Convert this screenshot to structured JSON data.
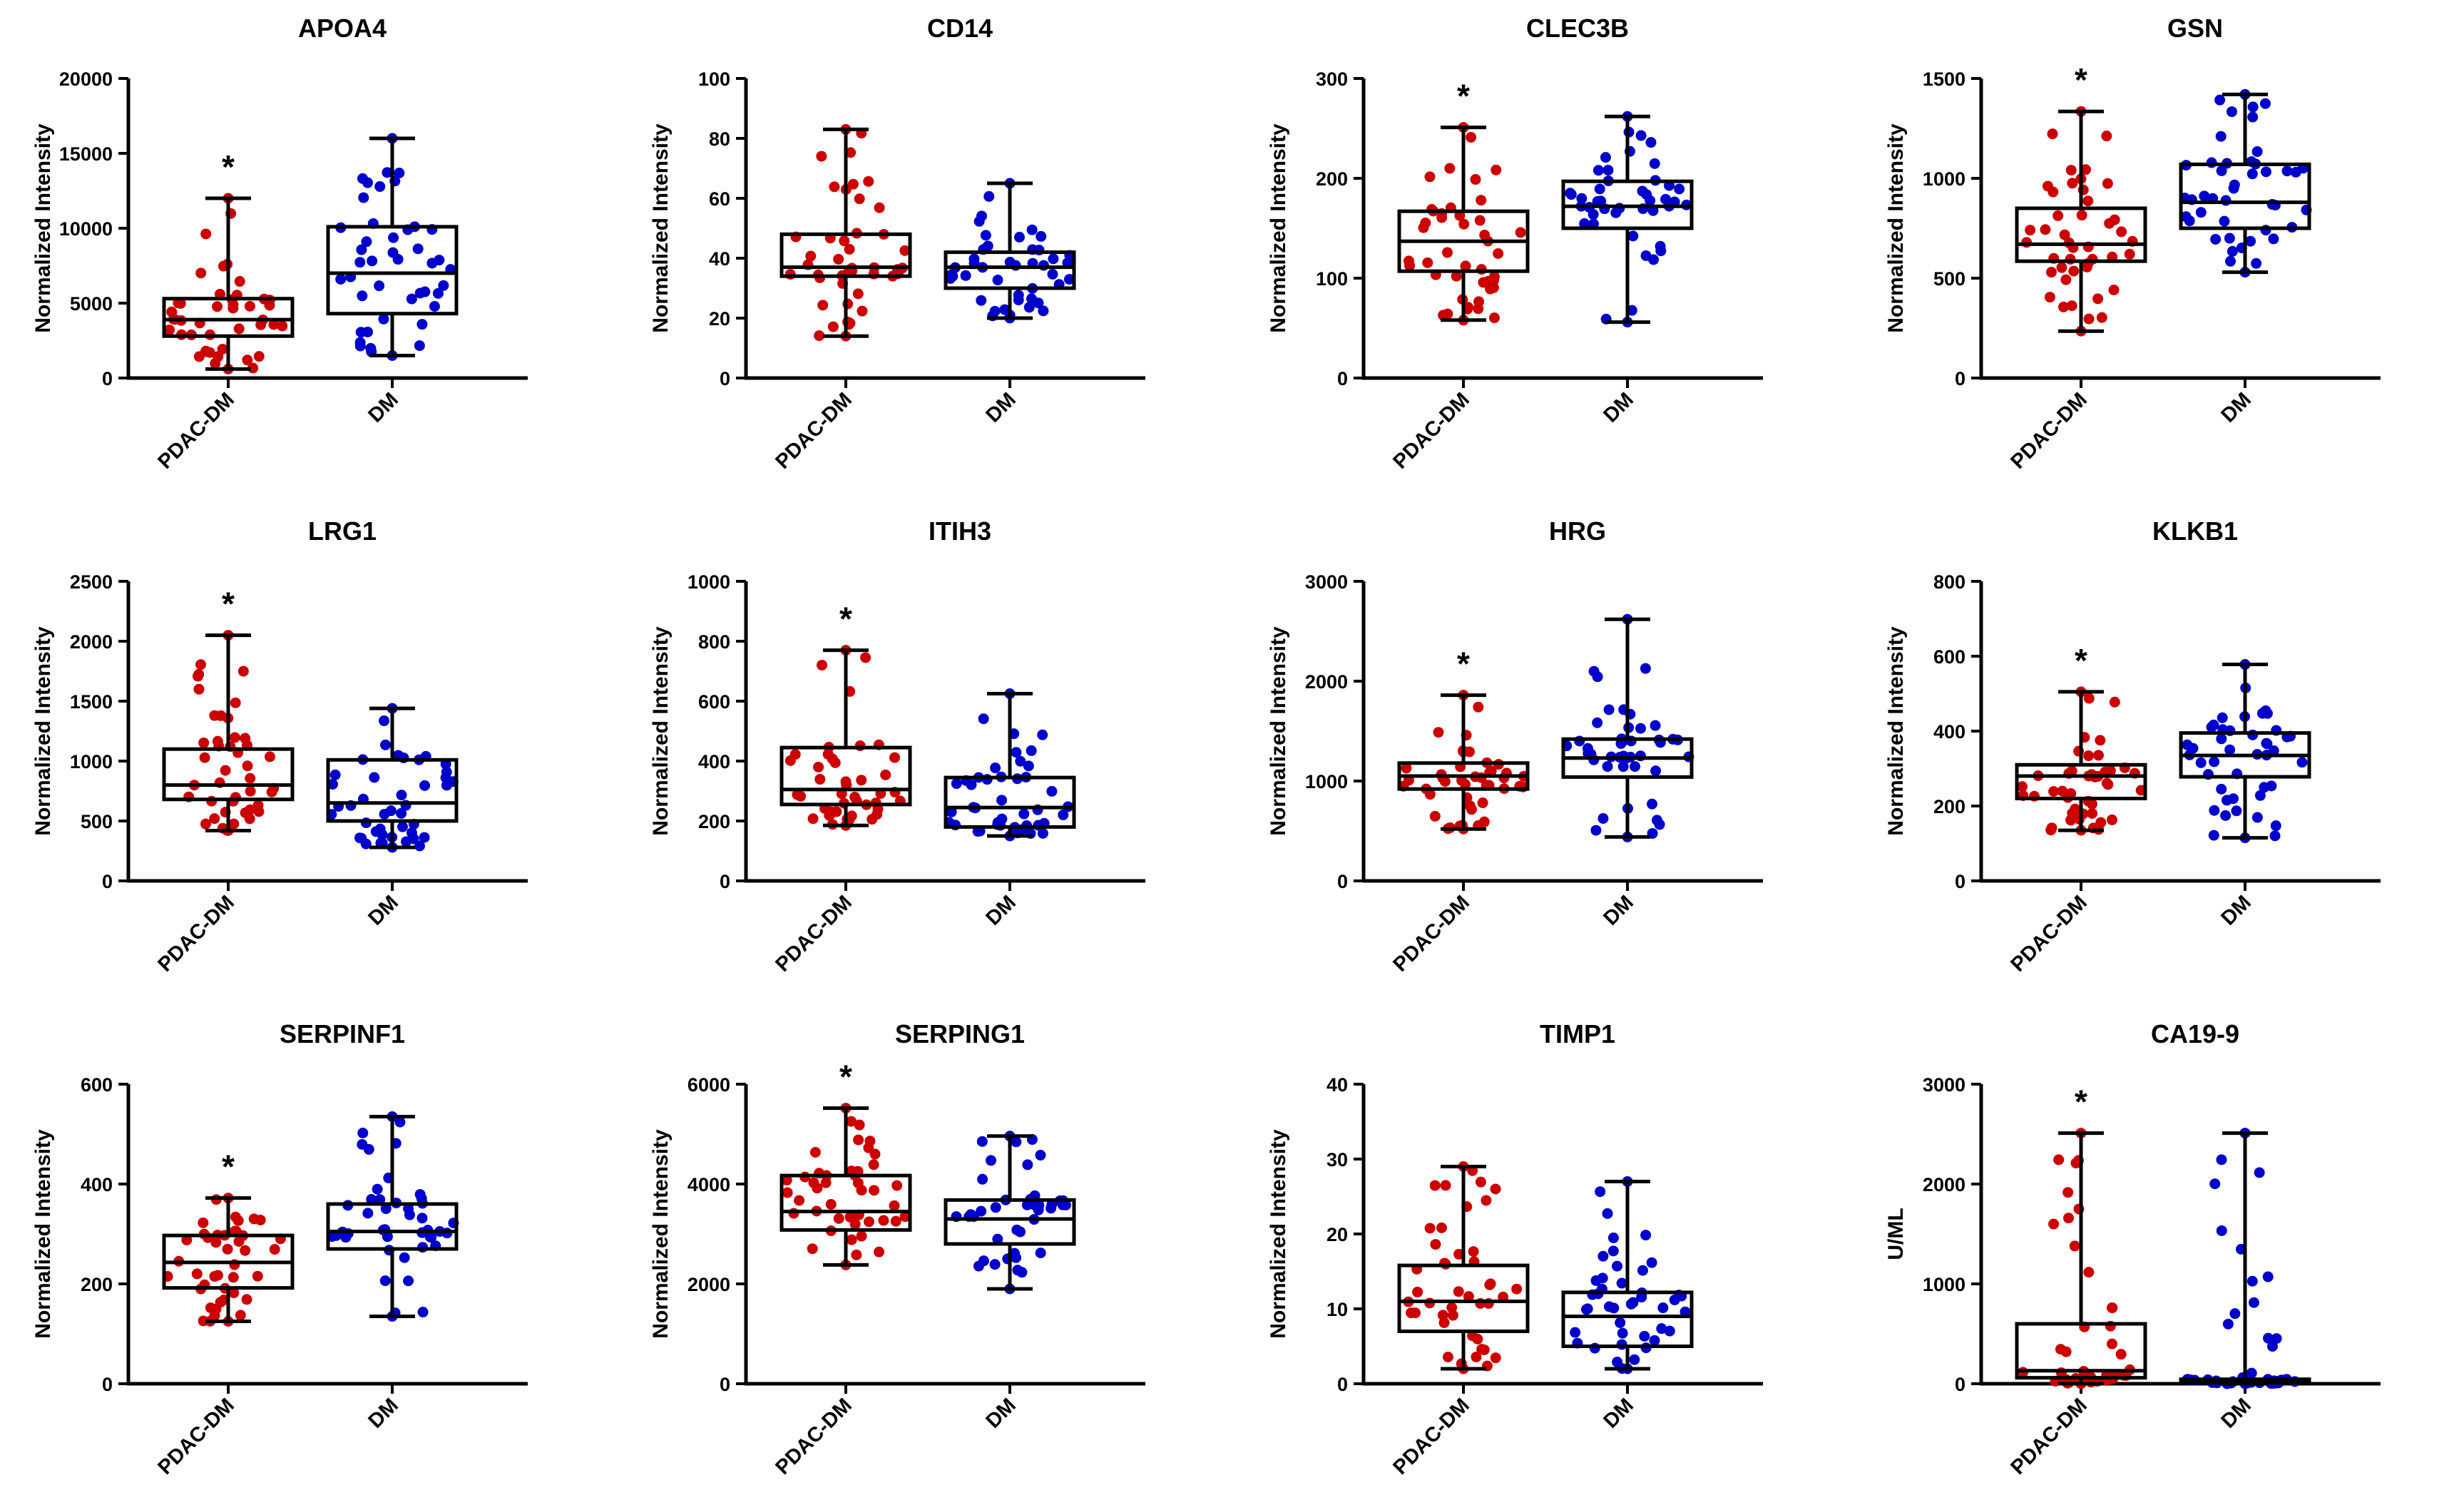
{
  "colors": {
    "pdac": "#cc0000",
    "dm": "#0000cc",
    "axis": "#000000"
  },
  "chart_data": [
    {
      "type": "box-scatter",
      "title": "APOA4",
      "ylabel": "Normalized Intensity",
      "ylim": [
        0,
        20000
      ],
      "yticks": [
        0,
        5000,
        10000,
        15000,
        20000
      ],
      "categories": [
        "PDAC-DM",
        "DM"
      ],
      "significance": "*",
      "significant_group": "PDAC-DM",
      "series": [
        {
          "name": "PDAC-DM",
          "min": 600,
          "q1": 2800,
          "median": 3900,
          "q3": 5300,
          "max": 12000
        },
        {
          "name": "DM",
          "min": 1500,
          "q1": 4300,
          "median": 7000,
          "q3": 10100,
          "max": 16000
        }
      ]
    },
    {
      "type": "box-scatter",
      "title": "CD14",
      "ylabel": "Normalized Intensity",
      "ylim": [
        0,
        100
      ],
      "yticks": [
        0,
        20,
        40,
        60,
        80,
        100
      ],
      "categories": [
        "PDAC-DM",
        "DM"
      ],
      "significance": "",
      "significant_group": "PDAC-DM",
      "series": [
        {
          "name": "PDAC-DM",
          "min": 14,
          "q1": 34,
          "median": 37,
          "q3": 48,
          "max": 83
        },
        {
          "name": "DM",
          "min": 20,
          "q1": 30,
          "median": 37,
          "q3": 42,
          "max": 65
        }
      ]
    },
    {
      "type": "box-scatter",
      "title": "CLEC3B",
      "ylabel": "Normalized Intensity",
      "ylim": [
        0,
        300
      ],
      "yticks": [
        0,
        100,
        200,
        300
      ],
      "categories": [
        "PDAC-DM",
        "DM"
      ],
      "significance": "*",
      "significant_group": "PDAC-DM",
      "series": [
        {
          "name": "PDAC-DM",
          "min": 58,
          "q1": 107,
          "median": 137,
          "q3": 167,
          "max": 251
        },
        {
          "name": "DM",
          "min": 56,
          "q1": 150,
          "median": 172,
          "q3": 197,
          "max": 262
        }
      ]
    },
    {
      "type": "box-scatter",
      "title": "GSN",
      "ylabel": "Normalized Intensity",
      "ylim": [
        0,
        1500
      ],
      "yticks": [
        0,
        500,
        1000,
        1500
      ],
      "categories": [
        "PDAC-DM",
        "DM"
      ],
      "significance": "*",
      "significant_group": "PDAC-DM",
      "series": [
        {
          "name": "PDAC-DM",
          "min": 235,
          "q1": 585,
          "median": 670,
          "q3": 850,
          "max": 1335
        },
        {
          "name": "DM",
          "min": 530,
          "q1": 750,
          "median": 880,
          "q3": 1070,
          "max": 1420
        }
      ]
    },
    {
      "type": "box-scatter",
      "title": "LRG1",
      "ylabel": "Normalized Intensity",
      "ylim": [
        0,
        2500
      ],
      "yticks": [
        0,
        500,
        1000,
        1500,
        2000,
        2500
      ],
      "categories": [
        "PDAC-DM",
        "DM"
      ],
      "significance": "*",
      "significant_group": "PDAC-DM",
      "series": [
        {
          "name": "PDAC-DM",
          "min": 420,
          "q1": 680,
          "median": 800,
          "q3": 1100,
          "max": 2050
        },
        {
          "name": "DM",
          "min": 280,
          "q1": 500,
          "median": 650,
          "q3": 1010,
          "max": 1440
        }
      ]
    },
    {
      "type": "box-scatter",
      "title": "ITIH3",
      "ylabel": "Normalized Intensity",
      "ylim": [
        0,
        1000
      ],
      "yticks": [
        0,
        200,
        400,
        600,
        800,
        1000
      ],
      "categories": [
        "PDAC-DM",
        "DM"
      ],
      "significance": "*",
      "significant_group": "PDAC-DM",
      "series": [
        {
          "name": "PDAC-DM",
          "min": 185,
          "q1": 255,
          "median": 305,
          "q3": 445,
          "max": 770
        },
        {
          "name": "DM",
          "min": 150,
          "q1": 180,
          "median": 245,
          "q3": 345,
          "max": 625
        }
      ]
    },
    {
      "type": "box-scatter",
      "title": "HRG",
      "ylabel": "Normalized Intensity",
      "ylim": [
        0,
        3000
      ],
      "yticks": [
        0,
        1000,
        2000,
        3000
      ],
      "categories": [
        "PDAC-DM",
        "DM"
      ],
      "significance": "*",
      "significant_group": "PDAC-DM",
      "series": [
        {
          "name": "PDAC-DM",
          "min": 520,
          "q1": 920,
          "median": 1050,
          "q3": 1180,
          "max": 1860
        },
        {
          "name": "DM",
          "min": 440,
          "q1": 1040,
          "median": 1230,
          "q3": 1420,
          "max": 2620
        }
      ]
    },
    {
      "type": "box-scatter",
      "title": "KLKB1",
      "ylabel": "Normalized Intensity",
      "ylim": [
        0,
        800
      ],
      "yticks": [
        0,
        200,
        400,
        600,
        800
      ],
      "categories": [
        "PDAC-DM",
        "DM"
      ],
      "significance": "*",
      "significant_group": "PDAC-DM",
      "series": [
        {
          "name": "PDAC-DM",
          "min": 135,
          "q1": 220,
          "median": 280,
          "q3": 310,
          "max": 505
        },
        {
          "name": "DM",
          "min": 115,
          "q1": 278,
          "median": 335,
          "q3": 395,
          "max": 578
        }
      ]
    },
    {
      "type": "box-scatter",
      "title": "SERPINF1",
      "ylabel": "Normalized Intensity",
      "ylim": [
        0,
        600
      ],
      "yticks": [
        0,
        200,
        400,
        600
      ],
      "categories": [
        "PDAC-DM",
        "DM"
      ],
      "significance": "*",
      "significant_group": "PDAC-DM",
      "series": [
        {
          "name": "PDAC-DM",
          "min": 125,
          "q1": 192,
          "median": 243,
          "q3": 297,
          "max": 372
        },
        {
          "name": "DM",
          "min": 135,
          "q1": 270,
          "median": 305,
          "q3": 360,
          "max": 535
        }
      ]
    },
    {
      "type": "box-scatter",
      "title": "SERPING1",
      "ylabel": "Normalized Intensity",
      "ylim": [
        0,
        6000
      ],
      "yticks": [
        0,
        2000,
        4000,
        6000
      ],
      "categories": [
        "PDAC-DM",
        "DM"
      ],
      "significance": "*",
      "significant_group": "PDAC-DM",
      "series": [
        {
          "name": "PDAC-DM",
          "min": 2380,
          "q1": 3080,
          "median": 3450,
          "q3": 4170,
          "max": 5520
        },
        {
          "name": "DM",
          "min": 1900,
          "q1": 2800,
          "median": 3300,
          "q3": 3680,
          "max": 4960
        }
      ]
    },
    {
      "type": "box-scatter",
      "title": "TIMP1",
      "ylabel": "Normalized Intensity",
      "ylim": [
        0,
        40
      ],
      "yticks": [
        0,
        10,
        20,
        30,
        40
      ],
      "categories": [
        "PDAC-DM",
        "DM"
      ],
      "significance": "",
      "significant_group": "PDAC-DM",
      "series": [
        {
          "name": "PDAC-DM",
          "min": 2,
          "q1": 7,
          "median": 11,
          "q3": 15.8,
          "max": 29
        },
        {
          "name": "DM",
          "min": 2,
          "q1": 5,
          "median": 9,
          "q3": 12.2,
          "max": 27
        }
      ]
    },
    {
      "type": "box-scatter",
      "title": "CA19-9",
      "ylabel": "U/ML",
      "ylim": [
        0,
        3000
      ],
      "yticks": [
        0,
        1000,
        2000,
        3000
      ],
      "categories": [
        "PDAC-DM",
        "DM"
      ],
      "significance": "*",
      "significant_group": "PDAC-DM",
      "series": [
        {
          "name": "PDAC-DM",
          "min": 0,
          "q1": 60,
          "median": 130,
          "q3": 600,
          "max": 2510
        },
        {
          "name": "DM",
          "min": 0,
          "q1": 10,
          "median": 25,
          "q3": 45,
          "max": 2510
        }
      ]
    }
  ]
}
